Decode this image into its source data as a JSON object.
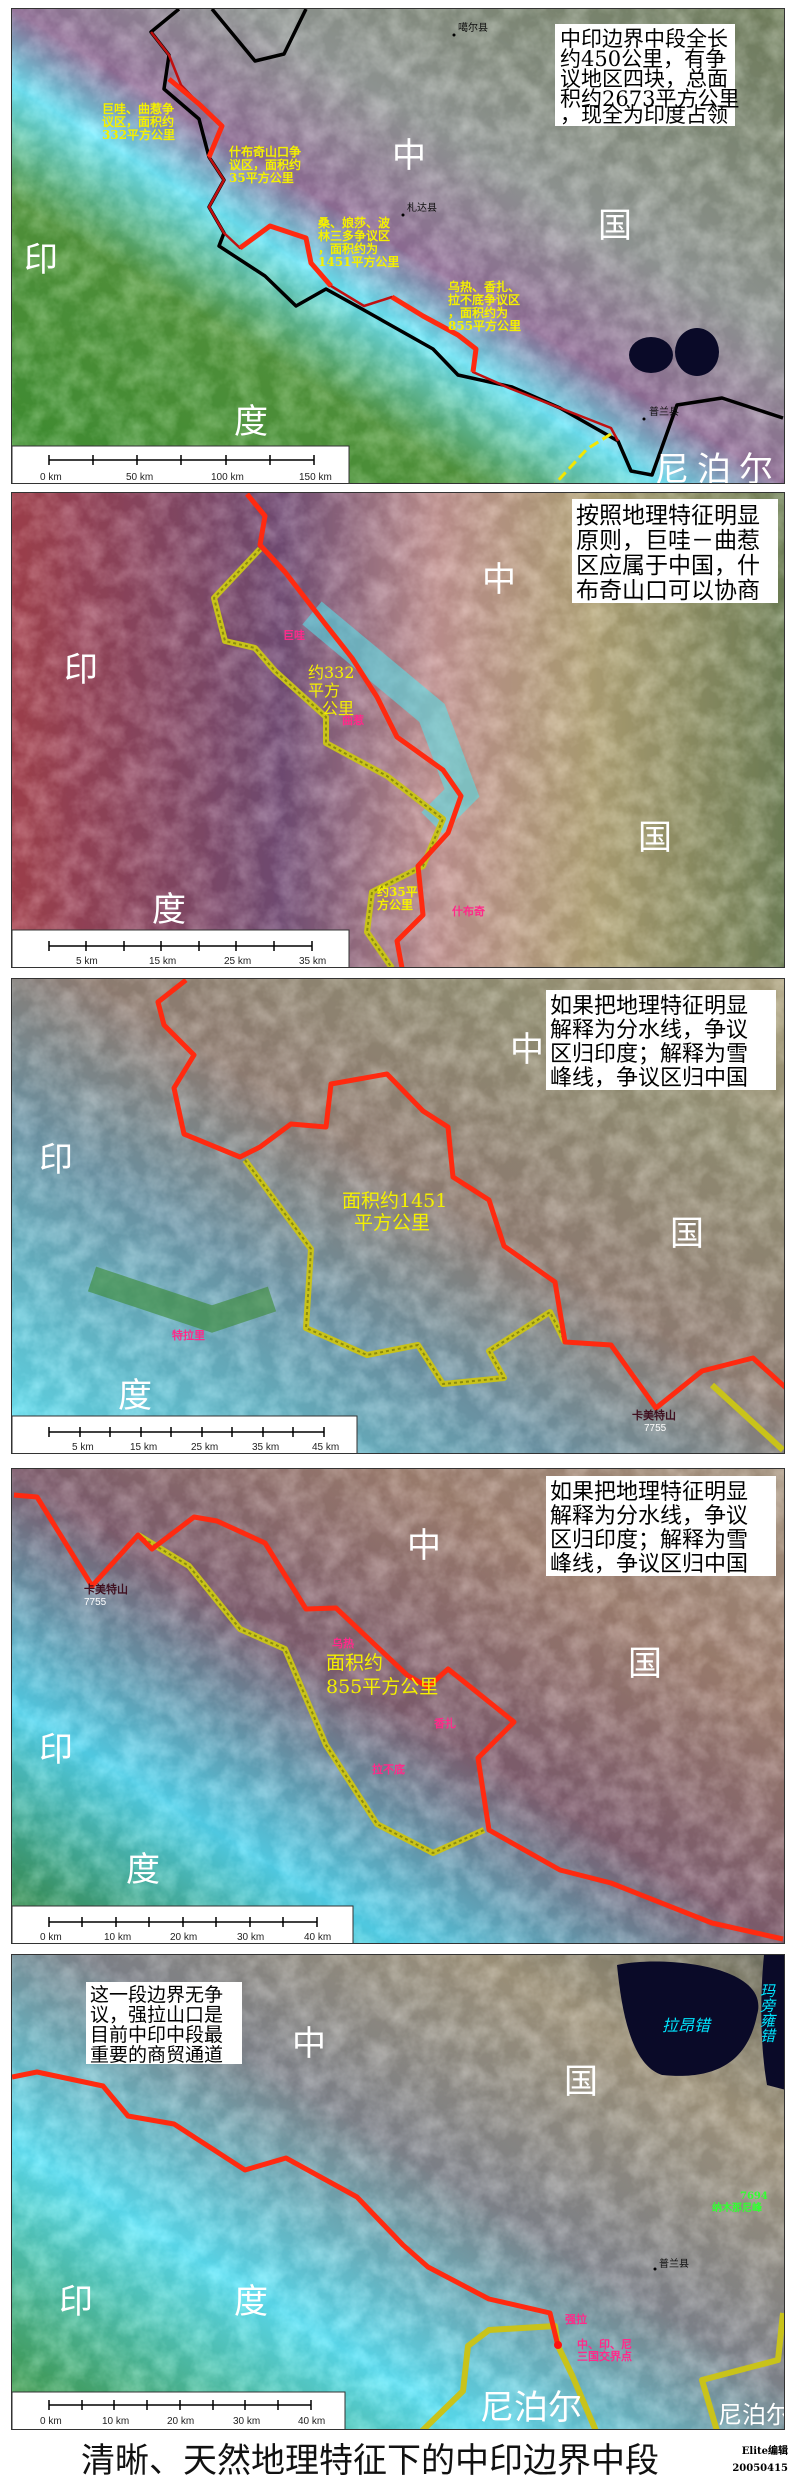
{
  "panels": [
    {
      "note": [
        "中印边界中段全长",
        "约450公里，有争",
        "议地区四块，总面",
        "积约2673平方公里",
        "，现全为印度占领"
      ],
      "big": {
        "zhong": "中",
        "guo": "国",
        "yin": "印",
        "du": "度",
        "nepal": "尼泊尔"
      },
      "areas": [
        [
          "巨哇、曲惹争",
          "议区，面积约",
          "332平方公里"
        ],
        [
          "什布奇山口争",
          "议区，面积约",
          "35平方公里"
        ],
        [
          "桑、娘莎、波",
          "林三多争议区",
          "，面积约为",
          "1451平方公里"
        ],
        [
          "乌热、香扎、",
          "拉不底争议区",
          "，面积约为",
          "855平方公里"
        ]
      ],
      "towns": [
        "噶尔县",
        "札达县",
        "普兰县"
      ],
      "scale": [
        "0 km",
        "50 km",
        "100 km",
        "150 km"
      ]
    },
    {
      "note": [
        "按照地理特征明显",
        "原则，巨哇－曲惹",
        "区应属于中国，什",
        "布奇山口可以协商"
      ],
      "big": {
        "zhong": "中",
        "guo": "国",
        "yin": "印",
        "du": "度"
      },
      "areas": [
        [
          "约332",
          "平方",
          "公里"
        ],
        [
          "约35平",
          "方公里"
        ]
      ],
      "places": [
        "巨哇",
        "曲惹",
        "什布奇"
      ],
      "scale": [
        "5 km",
        "15 km",
        "25 km",
        "35 km"
      ]
    },
    {
      "note": [
        "如果把地理特征明显",
        "解释为分水线，争议",
        "区归印度；解释为雪",
        "峰线，争议区归中国"
      ],
      "big": {
        "zhong": "中",
        "guo": "国",
        "yin": "印",
        "du": "度"
      },
      "areas": [
        [
          "面积约1451",
          "平方公里"
        ]
      ],
      "places": [
        "特拉里",
        "卡美特山",
        "7755"
      ],
      "scale": [
        "5 km",
        "15 km",
        "25 km",
        "35 km",
        "45 km"
      ]
    },
    {
      "note": [
        "如果把地理特征明显",
        "解释为分水线，争议",
        "区归印度；解释为雪",
        "峰线，争议区归中国"
      ],
      "big": {
        "zhong": "中",
        "guo": "国",
        "yin": "印",
        "du": "度"
      },
      "areas": [
        [
          "面积约",
          "855平方公里"
        ]
      ],
      "places": [
        "卡美特山",
        "7755",
        "乌热",
        "香扎",
        "拉不底"
      ],
      "scale": [
        "0 km",
        "10 km",
        "20 km",
        "30 km",
        "40 km"
      ]
    },
    {
      "note": [
        "这一段边界无争",
        "议，强拉山口是",
        "目前中印中段最",
        "重要的商贸通道"
      ],
      "big": {
        "zhong": "中",
        "guo": "国",
        "yin": "印",
        "du": "度",
        "nepal1": "尼泊尔",
        "nepal2": "尼泊尔"
      },
      "lakes": [
        "拉昂错",
        "玛旁雍错"
      ],
      "places": [
        "普兰县",
        "强拉",
        "中、印、尼",
        "三国交界点",
        "7694",
        "纳木那尼峰"
      ],
      "scale": [
        "0 km",
        "10 km",
        "20 km",
        "30 km",
        "40 km"
      ]
    }
  ],
  "footer": {
    "title": "清晰、天然地理特征下的中印边界中段",
    "author": "Elite编辑",
    "date": "20050415"
  },
  "colors": {
    "border_red": "#ff2a10",
    "claim_yellow": "#c9c31a",
    "snow_cyan": "#3fe8f2",
    "label_yellow": "#f4f000"
  }
}
